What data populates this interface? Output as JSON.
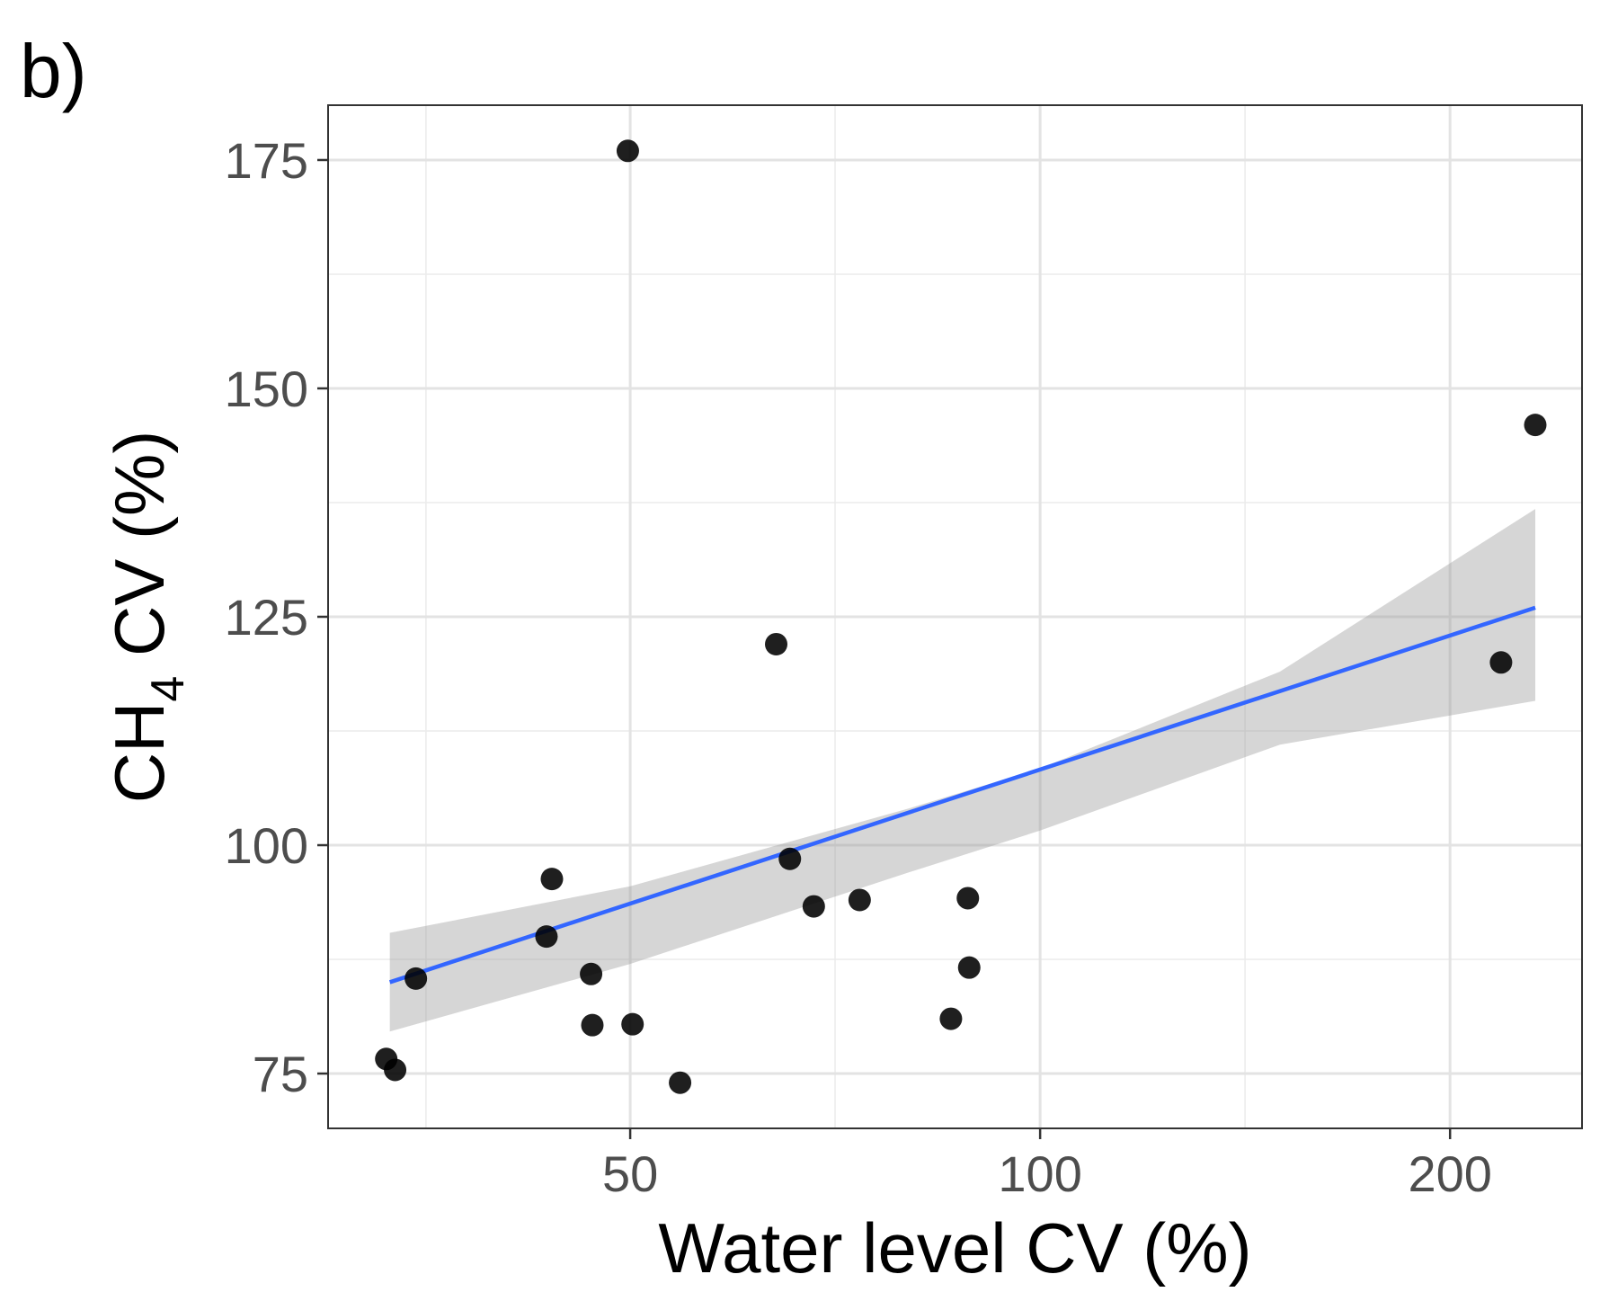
{
  "panel_label": "b)",
  "chart_data": {
    "type": "scatter",
    "xlabel": "Water level CV (%)",
    "ylabel_main": "CH",
    "ylabel_sub": "4",
    "ylabel_tail": " CV (%)",
    "x_scale": "log",
    "xlim": [
      30,
      250
    ],
    "ylim": [
      69,
      181
    ],
    "x_ticks": [
      50,
      100,
      200
    ],
    "x_tick_labels": [
      "50",
      "100",
      "200"
    ],
    "x_minor_grid": [
      35.4,
      70.7,
      141.4
    ],
    "y_ticks": [
      75,
      100,
      125,
      150,
      175
    ],
    "y_tick_labels": [
      "75",
      "100",
      "125",
      "150",
      "175"
    ],
    "y_minor_grid": [
      87.5,
      112.5,
      137.5,
      162.5
    ],
    "grid": true,
    "legend": "none",
    "point_color": "#000000",
    "trend_color": "#3366ff",
    "band_color": "#999999",
    "points": [
      {
        "x": 49.8,
        "y": 176.0
      },
      {
        "x": 231.0,
        "y": 146.0
      },
      {
        "x": 64.0,
        "y": 122.0
      },
      {
        "x": 218.0,
        "y": 120.0
      },
      {
        "x": 65.5,
        "y": 98.5
      },
      {
        "x": 43.8,
        "y": 96.3
      },
      {
        "x": 68.2,
        "y": 93.3
      },
      {
        "x": 73.7,
        "y": 94.0
      },
      {
        "x": 88.5,
        "y": 94.2
      },
      {
        "x": 88.7,
        "y": 86.6
      },
      {
        "x": 43.4,
        "y": 90.0
      },
      {
        "x": 46.8,
        "y": 85.9
      },
      {
        "x": 34.8,
        "y": 85.4
      },
      {
        "x": 46.9,
        "y": 80.3
      },
      {
        "x": 50.2,
        "y": 80.4
      },
      {
        "x": 86.0,
        "y": 81.0
      },
      {
        "x": 54.4,
        "y": 74.0
      },
      {
        "x": 33.1,
        "y": 76.6
      },
      {
        "x": 33.6,
        "y": 75.4
      }
    ],
    "trend_line": {
      "x": [
        33.3,
        231.0
      ],
      "y": [
        85.0,
        126.0
      ]
    },
    "confidence_band": {
      "x": [
        33.3,
        50,
        80,
        100,
        150,
        231.0
      ],
      "upper": [
        90.4,
        95.5,
        104.0,
        108.4,
        119.0,
        136.8
      ],
      "lower": [
        79.6,
        87.0,
        97.0,
        101.6,
        111.0,
        115.8
      ]
    }
  }
}
